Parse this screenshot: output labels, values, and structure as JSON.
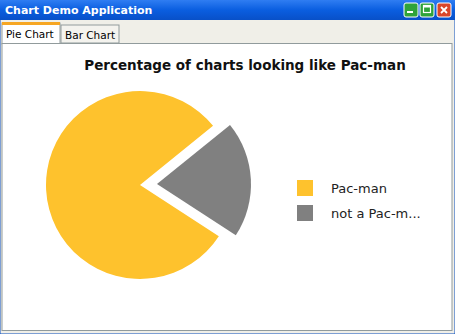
{
  "window": {
    "title": "Chart Demo Application",
    "tabs": [
      "Pie Chart",
      "Bar Chart"
    ]
  },
  "chart_data": {
    "type": "pie",
    "title": "Percentage of charts looking like Pac-man",
    "categories": [
      "Pac-man",
      "not a Pac-m..."
    ],
    "values": [
      80,
      20
    ],
    "colors": [
      "#fec22d",
      "#808080"
    ],
    "legend": "right"
  }
}
